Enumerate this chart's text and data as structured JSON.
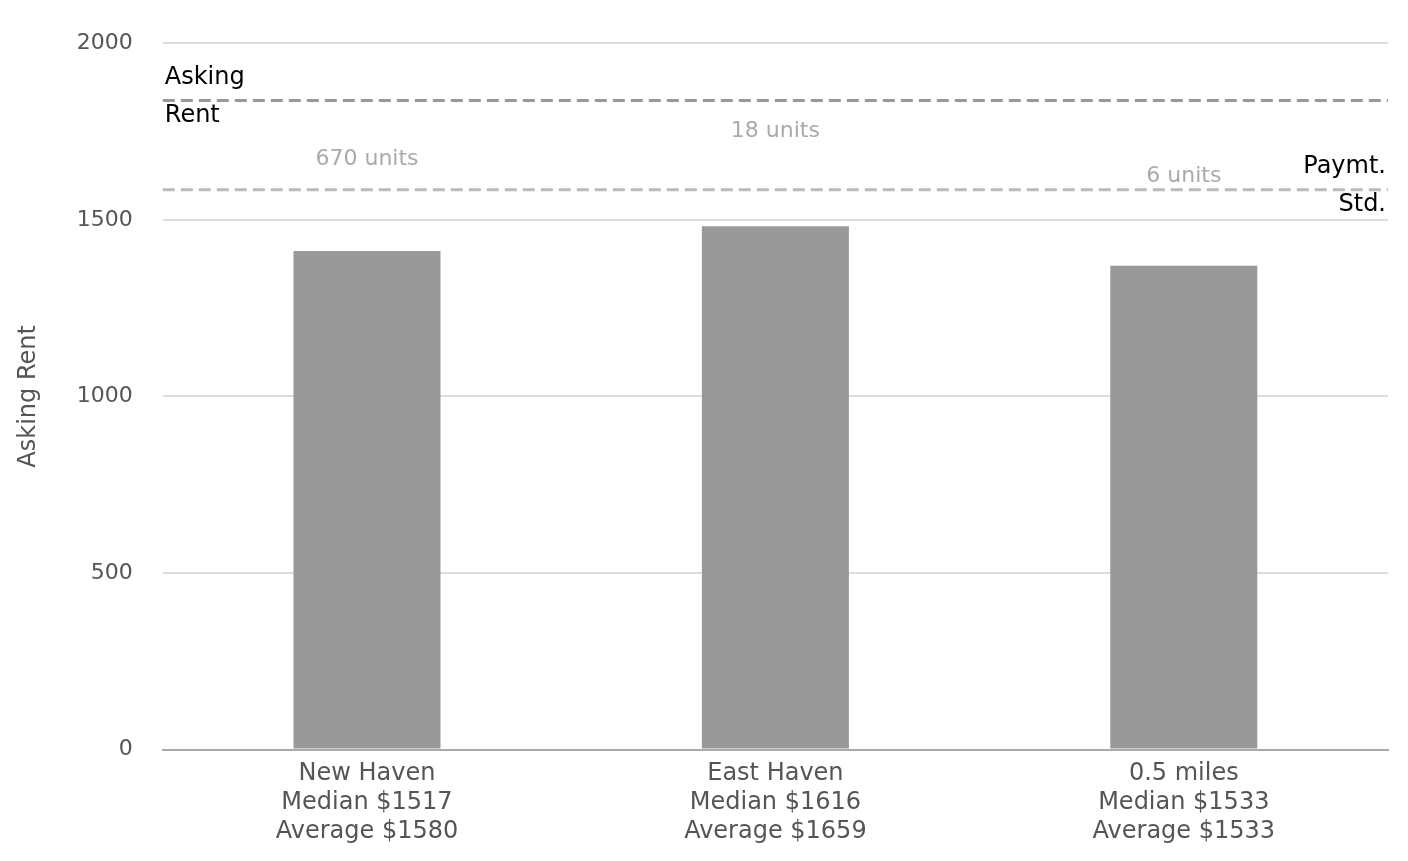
{
  "chart_data": {
    "type": "bar",
    "ylabel": "Asking Rent",
    "categories": [
      "New Haven\nMedian $1517\nAverage $1580",
      "East Haven\nMedian $1616\nAverage $1659",
      "0.5 miles\nMedian $1533\nAverage $1533"
    ],
    "values": [
      1412,
      1482,
      1370
    ],
    "color": "#999999",
    "ylim": [
      0,
      2000
    ],
    "yticks": [
      0,
      500,
      1000,
      1500,
      2000
    ],
    "grid": "y",
    "ref_lines": [
      {
        "axis": "y",
        "value": 1838,
        "label": "Asking Rent",
        "color": "#999999",
        "line_style": "dashed"
      },
      {
        "axis": "y",
        "value": 1585,
        "label": "Paymt. Std.",
        "color": "#bbbbbb",
        "line_style": "dashed"
      }
    ],
    "annotations": [
      "670 units",
      "18 units",
      "6 units"
    ]
  }
}
